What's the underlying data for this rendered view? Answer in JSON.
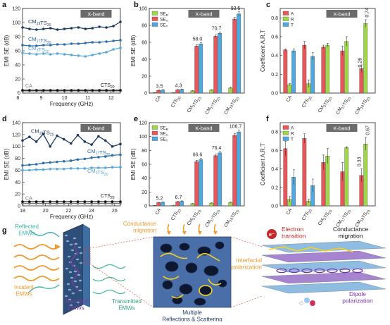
{
  "panels": {
    "a": {
      "letter": "a",
      "band": "X-band"
    },
    "b": {
      "letter": "b",
      "band": "X-band"
    },
    "c": {
      "letter": "c",
      "band": "X-band"
    },
    "d": {
      "letter": "d",
      "band": "K-band"
    },
    "e": {
      "letter": "e",
      "band": "K-band"
    },
    "f": {
      "letter": "f",
      "band": "K-band"
    },
    "g": {
      "letter": "g"
    }
  },
  "chart_data": [
    {
      "id": "a",
      "type": "line",
      "band": "X-band",
      "xlabel": "Frequency (GHz)",
      "ylabel": "EMI SE (dB)",
      "xlim": [
        8.2,
        12.4
      ],
      "ylim": [
        0,
        120
      ],
      "xticks": [
        8,
        9,
        10,
        11,
        12
      ],
      "yticks": [
        0,
        20,
        40,
        60,
        80,
        100,
        120
      ],
      "series": [
        {
          "name": "CM19TS20",
          "color": "#1f3a5f",
          "x": [
            8.2,
            8.5,
            8.8,
            9.1,
            9.4,
            9.7,
            10.0,
            10.3,
            10.6,
            10.9,
            11.2,
            11.5,
            11.8,
            12.1,
            12.4
          ],
          "y": [
            93,
            91,
            90,
            91,
            92,
            90,
            91,
            92,
            93,
            91,
            92,
            94,
            93,
            95,
            101
          ]
        },
        {
          "name": "CM17TS20",
          "color": "#2e6fad",
          "x": [
            8.2,
            8.5,
            8.8,
            9.1,
            9.4,
            9.7,
            10.0,
            10.3,
            10.6,
            10.9,
            11.2,
            11.5,
            11.8,
            12.1,
            12.4
          ],
          "y": [
            68,
            67,
            67,
            68,
            68,
            69,
            69,
            70,
            70,
            71,
            72,
            72,
            73,
            74,
            75
          ]
        },
        {
          "name": "CM3TS20",
          "color": "#5aa9dc",
          "x": [
            8.2,
            8.5,
            8.8,
            9.1,
            9.4,
            9.7,
            10.0,
            10.3,
            10.6,
            10.9,
            11.2,
            11.5,
            11.8,
            12.1,
            12.4
          ],
          "y": [
            57,
            56,
            55,
            56,
            55,
            56,
            55,
            54,
            53,
            52,
            54,
            56,
            58,
            62,
            64
          ]
        },
        {
          "name": "CA",
          "color": "#777777",
          "x": [
            8.2,
            8.5,
            8.8,
            9.1,
            9.4,
            9.7,
            10.0,
            10.3,
            10.6,
            10.9,
            11.2,
            11.5,
            11.8,
            12.1,
            12.4
          ],
          "y": [
            3,
            3,
            3,
            3,
            3,
            3,
            3,
            3,
            3,
            3,
            3,
            3,
            3,
            3,
            3
          ]
        },
        {
          "name": "CTS20",
          "color": "#111111",
          "x": [
            8.2,
            8.5,
            8.8,
            9.1,
            9.4,
            9.7,
            10.0,
            10.3,
            10.6,
            10.9,
            11.2,
            11.5,
            11.8,
            12.1,
            12.4
          ],
          "y": [
            4,
            4,
            4,
            4,
            4,
            4,
            4,
            4,
            4,
            4,
            4,
            4,
            4,
            4,
            4
          ]
        }
      ]
    },
    {
      "id": "b",
      "type": "bar",
      "band": "X-band",
      "ylabel": "EMI SE (dB)",
      "ylim": [
        0,
        100
      ],
      "yticks": [
        0,
        20,
        40,
        60,
        80,
        100
      ],
      "categories": [
        "CA",
        "CTS20",
        "CM3TS20",
        "CM17TS20",
        "CM19TS20"
      ],
      "series": [
        {
          "name": "SER",
          "color": "#9fd64a",
          "values": [
            0.4,
            0.6,
            2.5,
            3.5,
            6.0
          ],
          "err": [
            0.2,
            0.2,
            0.5,
            0.6,
            0.8
          ]
        },
        {
          "name": "SEA",
          "color": "#e8575a",
          "values": [
            3.2,
            3.8,
            55.5,
            67.2,
            87.5
          ],
          "err": [
            0.3,
            0.4,
            1.5,
            1.5,
            2.0
          ]
        },
        {
          "name": "SET",
          "color": "#4fa8df",
          "values": [
            3.5,
            4.3,
            58.0,
            70.7,
            93.5
          ],
          "err": [
            0.4,
            0.4,
            1.5,
            1.5,
            2.5
          ]
        }
      ],
      "labels": [
        "3.5",
        "4.3",
        "58.0",
        "70.7",
        "93.5"
      ]
    },
    {
      "id": "c",
      "type": "bar",
      "band": "X-band",
      "ylabel": "Coefficient A,R,T",
      "ylim": [
        0.0,
        0.9
      ],
      "yticks": [
        0.0,
        0.2,
        0.4,
        0.6,
        0.8
      ],
      "categories": [
        "CA",
        "CTS20",
        "CM3TS20",
        "CM17TS20",
        "CM19TS20"
      ],
      "series": [
        {
          "name": "A",
          "color": "#e8575a",
          "values": [
            0.46,
            0.51,
            0.49,
            0.45,
            0.26
          ],
          "err": [
            0.01,
            0.04,
            0.02,
            0.05,
            0.04
          ]
        },
        {
          "name": "R",
          "color": "#9fd64a",
          "values": [
            0.09,
            0.1,
            0.51,
            0.55,
            0.74
          ],
          "err": [
            0.01,
            0.04,
            0.02,
            0.05,
            0.04
          ]
        },
        {
          "name": "T",
          "color": "#4fa8df",
          "values": [
            0.45,
            0.39,
            0.0,
            0.0,
            0.0
          ],
          "err": [
            0.02,
            0.04,
            0,
            0,
            0
          ]
        }
      ],
      "labels": [
        "0.26",
        "0.74"
      ]
    },
    {
      "id": "d",
      "type": "line",
      "band": "K-band",
      "xlabel": "Frequency (GHz)",
      "ylabel": "EMI SE (dB)",
      "xlim": [
        18,
        26.5
      ],
      "ylim": [
        0,
        140
      ],
      "xticks": [
        18,
        20,
        22,
        24,
        26
      ],
      "yticks": [
        0,
        20,
        40,
        60,
        80,
        100,
        120,
        140
      ],
      "series": [
        {
          "name": "CM19TS20",
          "color": "#1f3a5f",
          "x": [
            18,
            18.6,
            19.2,
            19.8,
            20.4,
            21.0,
            21.6,
            22.2,
            22.8,
            23.4,
            24.0,
            24.6,
            25.2,
            25.8,
            26.5
          ],
          "y": [
            110,
            116,
            108,
            121,
            100,
            118,
            112,
            105,
            119,
            108,
            103,
            117,
            110,
            100,
            104
          ]
        },
        {
          "name": "CM17TS20",
          "color": "#2e6fad",
          "x": [
            18,
            18.6,
            19.2,
            19.8,
            20.4,
            21.0,
            21.6,
            22.2,
            22.8,
            23.4,
            24.0,
            24.6,
            25.2,
            25.8,
            26.5
          ],
          "y": [
            68,
            69,
            70,
            72,
            73,
            74,
            75,
            76,
            78,
            79,
            81,
            82,
            83,
            85,
            86
          ]
        },
        {
          "name": "CM3TS20",
          "color": "#5aa9dc",
          "x": [
            18,
            18.6,
            19.2,
            19.8,
            20.4,
            21.0,
            21.6,
            22.2,
            22.8,
            23.4,
            24.0,
            24.6,
            25.2,
            25.8,
            26.5
          ],
          "y": [
            60,
            60,
            61,
            61,
            62,
            62,
            62,
            63,
            63,
            63,
            64,
            64,
            64,
            65,
            65
          ]
        },
        {
          "name": "CA",
          "color": "#777777",
          "x": [
            18,
            18.6,
            19.2,
            19.8,
            20.4,
            21.0,
            21.6,
            22.2,
            22.8,
            23.4,
            24.0,
            24.6,
            25.2,
            25.8,
            26.5
          ],
          "y": [
            4,
            4,
            4,
            4,
            4,
            4,
            4,
            4,
            4,
            4,
            4,
            4,
            4,
            4,
            4
          ]
        },
        {
          "name": "CTS20",
          "color": "#111111",
          "x": [
            18,
            18.6,
            19.2,
            19.8,
            20.4,
            21.0,
            21.6,
            22.2,
            22.8,
            23.4,
            24.0,
            24.6,
            25.2,
            25.8,
            26.5
          ],
          "y": [
            7,
            7,
            7,
            7,
            7,
            7,
            7,
            7,
            7,
            7,
            7,
            7,
            7,
            7,
            7
          ]
        }
      ]
    },
    {
      "id": "e",
      "type": "bar",
      "band": "K-band",
      "ylabel": "EMI SE (dB)",
      "ylim": [
        0,
        120
      ],
      "yticks": [
        0,
        20,
        40,
        60,
        80,
        100,
        120
      ],
      "categories": [
        "CA",
        "CTS20",
        "CM3TS20",
        "CM17TS20",
        "CM19TS20"
      ],
      "series": [
        {
          "name": "SER",
          "color": "#9fd64a",
          "values": [
            0.5,
            0.8,
            3.0,
            4.0,
            5.0
          ],
          "err": [
            0.2,
            0.2,
            0.5,
            0.5,
            0.6
          ]
        },
        {
          "name": "SEA",
          "color": "#e8575a",
          "values": [
            4.7,
            5.9,
            63.6,
            72.4,
            101.7
          ],
          "err": [
            0.4,
            0.5,
            2.0,
            2.0,
            2.5
          ]
        },
        {
          "name": "SET",
          "color": "#4fa8df",
          "values": [
            5.2,
            6.7,
            66.6,
            76.4,
            106.7
          ],
          "err": [
            0.4,
            0.5,
            2.0,
            2.0,
            2.5
          ]
        }
      ],
      "labels": [
        "5.2",
        "6.7",
        "66.6",
        "76.4",
        "106.7"
      ]
    },
    {
      "id": "f",
      "type": "bar",
      "band": "K-band",
      "ylabel": "Coefficient A,R,T",
      "ylim": [
        0.0,
        0.9
      ],
      "yticks": [
        0.0,
        0.2,
        0.4,
        0.6,
        0.8
      ],
      "categories": [
        "CA",
        "CTS20",
        "CM3TS20",
        "CM17TS20",
        "CM19TS20"
      ],
      "series": [
        {
          "name": "A",
          "color": "#e8575a",
          "values": [
            0.62,
            0.73,
            0.47,
            0.37,
            0.33
          ],
          "err": [
            0.08,
            0.05,
            0.08,
            0.1,
            0.07
          ]
        },
        {
          "name": "R",
          "color": "#9fd64a",
          "values": [
            0.07,
            0.05,
            0.54,
            0.63,
            0.67
          ],
          "err": [
            0.03,
            0.02,
            0.08,
            0.01,
            0.07
          ]
        },
        {
          "name": "T",
          "color": "#4fa8df",
          "values": [
            0.31,
            0.22,
            0.0,
            0.0,
            0.0
          ],
          "err": [
            0.08,
            0.07,
            0,
            0,
            0
          ]
        }
      ],
      "labels": [
        "0.33",
        "0.67"
      ]
    }
  ],
  "schematic": {
    "reflected": "Reflected\nEMWs",
    "incident": "Incident\nEMWs",
    "absorbed": "Absorbed\nEMWs",
    "transmitted": "Transmitted\nEMWs",
    "conductance_migration_mid": "Conductance\nmigration",
    "multiple": "Multiple\nReflections & Scattering",
    "electron_transition": "Electron\ntransition",
    "electron_symbol": "e⁻",
    "conductance_migration_right": "Conductance\nmigration",
    "interfacial": "Interfacial\npolarization",
    "dipole": "Dipole\npolarization"
  },
  "colors": {
    "dark": "#1f3a5f",
    "mid": "#2e6fad",
    "light": "#5aa9dc",
    "red": "#e8575a",
    "green": "#9fd64a",
    "blue": "#4fa8df",
    "orange": "#f29a2e",
    "purple": "#7a3ea0",
    "teal": "#3fb5a8",
    "yellow": "#f5d21f"
  }
}
